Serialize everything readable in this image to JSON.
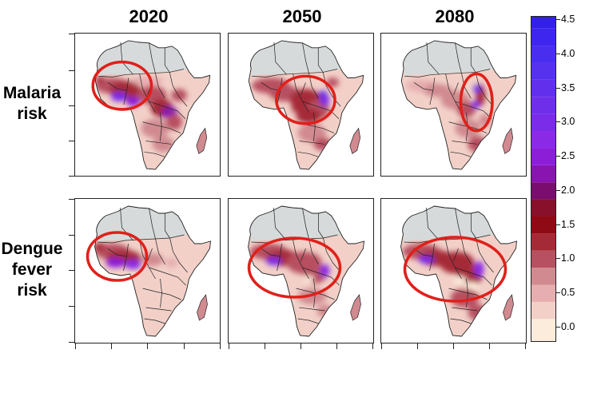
{
  "columns": [
    "2020",
    "2050",
    "2080"
  ],
  "rows": [
    {
      "label_lines": [
        "Malaria",
        "risk"
      ]
    },
    {
      "label_lines": [
        "Dengue",
        "fever",
        "risk"
      ]
    }
  ],
  "legend": {
    "labels": [
      "4.5",
      "4.0",
      "3.5",
      "3.0",
      "2.5",
      "2.0",
      "1.5",
      "1.0",
      "0.5",
      "0.0"
    ],
    "bands": [
      {
        "value": 0.0,
        "color": "#fcecdc"
      },
      {
        "value": 0.25,
        "color": "#f2d0c8"
      },
      {
        "value": 0.5,
        "color": "#e6aeb0"
      },
      {
        "value": 0.75,
        "color": "#d08a90"
      },
      {
        "value": 1.0,
        "color": "#b75060"
      },
      {
        "value": 1.25,
        "color": "#a52a38"
      },
      {
        "value": 1.5,
        "color": "#8e0a14"
      },
      {
        "value": 1.75,
        "color": "#88102a"
      },
      {
        "value": 2.0,
        "color": "#7a0d6e"
      },
      {
        "value": 2.25,
        "color": "#8a14b0"
      },
      {
        "value": 2.5,
        "color": "#8c1ed8"
      },
      {
        "value": 2.75,
        "color": "#8a2ae6"
      },
      {
        "value": 3.0,
        "color": "#7a2ce8"
      },
      {
        "value": 3.25,
        "color": "#6e2eea"
      },
      {
        "value": 3.5,
        "color": "#6230ec"
      },
      {
        "value": 3.75,
        "color": "#5632ee"
      },
      {
        "value": 4.0,
        "color": "#4a2ef0"
      },
      {
        "value": 4.25,
        "color": "#3e26ee"
      },
      {
        "value": 4.5,
        "color": "#3320e8"
      }
    ]
  },
  "highlight_color": "#e0201a",
  "no_data_color": "#d4dadb"
}
